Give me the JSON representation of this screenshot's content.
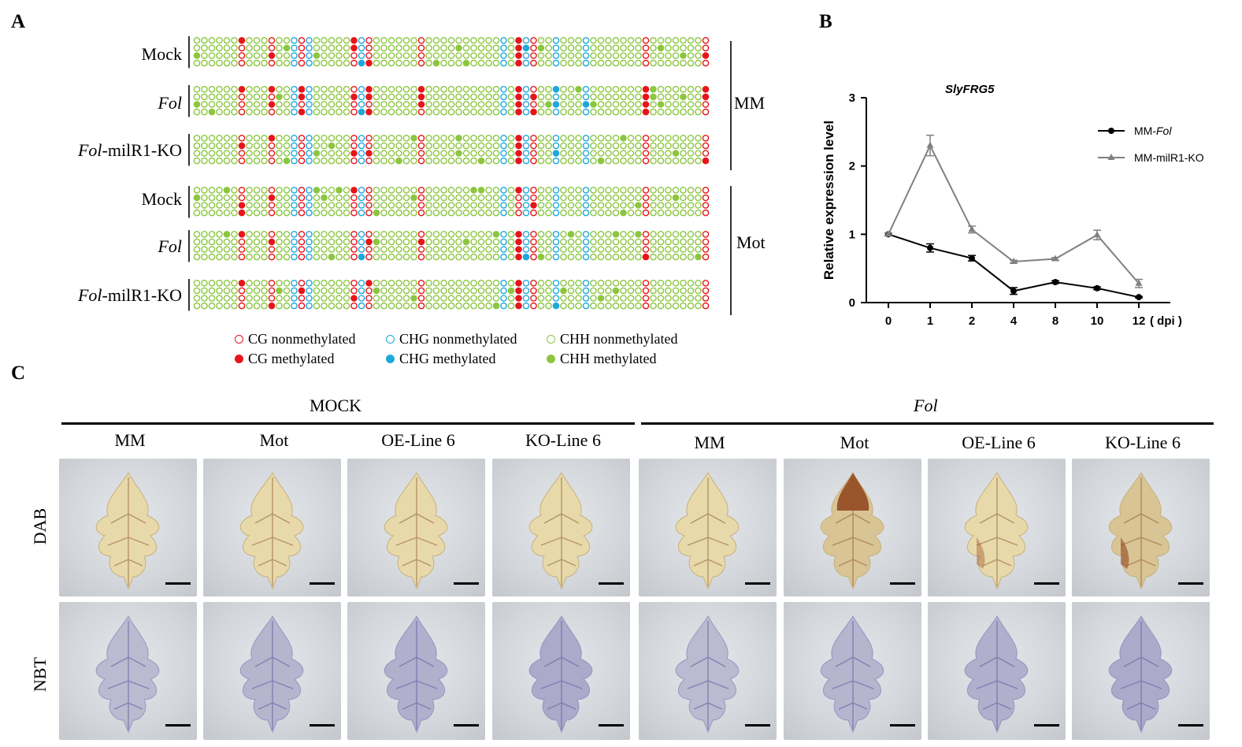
{
  "panelA": {
    "label": "A",
    "rows": [
      {
        "label": "Mock",
        "italic": false
      },
      {
        "label": "Fol",
        "italic": true
      },
      {
        "label_italic": "Fol",
        "label_rest": "-milR1-KO"
      },
      {
        "label": "Mock",
        "italic": false
      },
      {
        "label": "Fol",
        "italic": true
      },
      {
        "label_italic": "Fol",
        "label_rest": "-milR1-KO"
      }
    ],
    "groups": [
      "MM",
      "Mot"
    ],
    "legend": [
      {
        "text": "CG nonmethylated",
        "type": "CG",
        "filled": false
      },
      {
        "text": "CHG nonmethylated",
        "type": "CHG",
        "filled": false
      },
      {
        "text": "CHH nonmethylated",
        "type": "CHH",
        "filled": false
      },
      {
        "text": "CG methylated",
        "type": "CG",
        "filled": true
      },
      {
        "text": "CHG methylated",
        "type": "CHG",
        "filled": true
      },
      {
        "text": "CHH methylated",
        "type": "CHH",
        "filled": true
      }
    ],
    "colors": {
      "CG": "#e8141b",
      "CHG": "#1ea8dc",
      "CHH": "#8cc63f"
    },
    "column_types": "GGGGGGRGGGRGGBRBGGGGGRBRGGGGGGRGGGGGGGGGGBGRBRGGBGGGBGGGGGGGRGGGGGGGR",
    "note_columns": "see script"
  },
  "panelB": {
    "label": "B",
    "chart_data": {
      "type": "line",
      "title": "SlyFRG5",
      "ylabel": "Relative expression level",
      "x_categories": [
        "0",
        "1",
        "2",
        "4",
        "8",
        "10",
        "12"
      ],
      "x_unit_label": "( dpi )",
      "ylim": [
        0,
        3
      ],
      "yticks": [
        "0",
        "1",
        "2",
        "3"
      ],
      "series": [
        {
          "name_prefix": "MM-",
          "name_italic": "Fol",
          "color": "#000000",
          "marker": "circle",
          "values": [
            1.0,
            0.8,
            0.65,
            0.17,
            0.3,
            0.21,
            0.08
          ],
          "errors": [
            0.02,
            0.06,
            0.04,
            0.05,
            0.02,
            0.02,
            0.01
          ]
        },
        {
          "name": "MM-milR1-KO",
          "color": "#808080",
          "marker": "triangle",
          "values": [
            1.0,
            2.3,
            1.07,
            0.6,
            0.64,
            0.99,
            0.28
          ],
          "errors": [
            0.02,
            0.15,
            0.05,
            0.02,
            0.02,
            0.07,
            0.06
          ]
        }
      ]
    }
  },
  "panelC": {
    "label": "C",
    "treatments": [
      {
        "label": "MOCK",
        "italic": false
      },
      {
        "label": "Fol",
        "italic": true
      }
    ],
    "columns": [
      "MM",
      "Mot",
      "OE-Line 6",
      "KO-Line 6",
      "MM",
      "Mot",
      "OE-Line 6",
      "KO-Line 6"
    ],
    "stains": [
      "DAB",
      "NBT"
    ],
    "dab_stain_levels": [
      0.1,
      0.15,
      0.1,
      0.1,
      0.15,
      0.8,
      0.35,
      0.55
    ]
  }
}
